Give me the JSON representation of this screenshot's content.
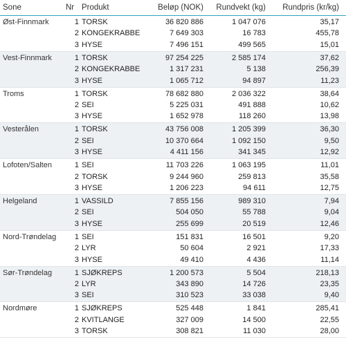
{
  "headers": {
    "sone": "Sone",
    "nr": "Nr",
    "produkt": "Produkt",
    "belop": "Beløp (NOK)",
    "rundvekt": "Rundvekt (kg)",
    "rundpris": "Rundpris (kr/kg)"
  },
  "groups": [
    {
      "sone": "Øst-Finnmark",
      "rows": [
        {
          "nr": "1",
          "produkt": "TORSK",
          "belop": "36 820 886",
          "rundvekt": "1 047 076",
          "rundpris": "35,17"
        },
        {
          "nr": "2",
          "produkt": "KONGEKRABBE",
          "belop": "7 649 303",
          "rundvekt": "16 783",
          "rundpris": "455,78"
        },
        {
          "nr": "3",
          "produkt": "HYSE",
          "belop": "7 496 151",
          "rundvekt": "499 565",
          "rundpris": "15,01"
        }
      ]
    },
    {
      "sone": "Vest-Finnmark",
      "rows": [
        {
          "nr": "1",
          "produkt": "TORSK",
          "belop": "97 254 225",
          "rundvekt": "2 585 174",
          "rundpris": "37,62"
        },
        {
          "nr": "2",
          "produkt": "KONGEKRABBE",
          "belop": "1 317 231",
          "rundvekt": "5 138",
          "rundpris": "256,39"
        },
        {
          "nr": "3",
          "produkt": "HYSE",
          "belop": "1 065 712",
          "rundvekt": "94 897",
          "rundpris": "11,23"
        }
      ]
    },
    {
      "sone": "Troms",
      "rows": [
        {
          "nr": "1",
          "produkt": "TORSK",
          "belop": "78 682 880",
          "rundvekt": "2 036 322",
          "rundpris": "38,64"
        },
        {
          "nr": "2",
          "produkt": "SEI",
          "belop": "5 225 031",
          "rundvekt": "491 888",
          "rundpris": "10,62"
        },
        {
          "nr": "3",
          "produkt": "HYSE",
          "belop": "1 652 978",
          "rundvekt": "118 260",
          "rundpris": "13,98"
        }
      ]
    },
    {
      "sone": "Vesterålen",
      "rows": [
        {
          "nr": "1",
          "produkt": "TORSK",
          "belop": "43 756 008",
          "rundvekt": "1 205 399",
          "rundpris": "36,30"
        },
        {
          "nr": "2",
          "produkt": "SEI",
          "belop": "10 370 664",
          "rundvekt": "1 092 150",
          "rundpris": "9,50"
        },
        {
          "nr": "3",
          "produkt": "HYSE",
          "belop": "4 411 156",
          "rundvekt": "341 345",
          "rundpris": "12,92"
        }
      ]
    },
    {
      "sone": "Lofoten/Salten",
      "rows": [
        {
          "nr": "1",
          "produkt": "SEI",
          "belop": "11 703 226",
          "rundvekt": "1 063 195",
          "rundpris": "11,01"
        },
        {
          "nr": "2",
          "produkt": "TORSK",
          "belop": "9 244 960",
          "rundvekt": "259 813",
          "rundpris": "35,58"
        },
        {
          "nr": "3",
          "produkt": "HYSE",
          "belop": "1 206 223",
          "rundvekt": "94 611",
          "rundpris": "12,75"
        }
      ]
    },
    {
      "sone": "Helgeland",
      "rows": [
        {
          "nr": "1",
          "produkt": "VASSILD",
          "belop": "7 855 156",
          "rundvekt": "989 310",
          "rundpris": "7,94"
        },
        {
          "nr": "2",
          "produkt": "SEI",
          "belop": "504 050",
          "rundvekt": "55 788",
          "rundpris": "9,04"
        },
        {
          "nr": "3",
          "produkt": "HYSE",
          "belop": "255 699",
          "rundvekt": "20 519",
          "rundpris": "12,46"
        }
      ]
    },
    {
      "sone": "Nord-Trøndelag",
      "rows": [
        {
          "nr": "1",
          "produkt": "SEI",
          "belop": "151 831",
          "rundvekt": "16 501",
          "rundpris": "9,20"
        },
        {
          "nr": "2",
          "produkt": "LYR",
          "belop": "50 604",
          "rundvekt": "2 921",
          "rundpris": "17,33"
        },
        {
          "nr": "3",
          "produkt": "HYSE",
          "belop": "49 410",
          "rundvekt": "4 436",
          "rundpris": "11,14"
        }
      ]
    },
    {
      "sone": "Sør-Trøndelag",
      "rows": [
        {
          "nr": "1",
          "produkt": "SJØKREPS",
          "belop": "1 200 573",
          "rundvekt": "5 504",
          "rundpris": "218,13"
        },
        {
          "nr": "2",
          "produkt": "LYR",
          "belop": "343 890",
          "rundvekt": "14 726",
          "rundpris": "23,35"
        },
        {
          "nr": "3",
          "produkt": "SEI",
          "belop": "310 523",
          "rundvekt": "33 038",
          "rundpris": "9,40"
        }
      ]
    },
    {
      "sone": "Nordmøre",
      "rows": [
        {
          "nr": "1",
          "produkt": "SJØKREPS",
          "belop": "525 448",
          "rundvekt": "1 841",
          "rundpris": "285,41"
        },
        {
          "nr": "2",
          "produkt": "KVITLANGE",
          "belop": "327 009",
          "rundvekt": "14 500",
          "rundpris": "22,55"
        },
        {
          "nr": "3",
          "produkt": "TORSK",
          "belop": "308 821",
          "rundvekt": "11 030",
          "rundpris": "28,00"
        }
      ]
    }
  ]
}
